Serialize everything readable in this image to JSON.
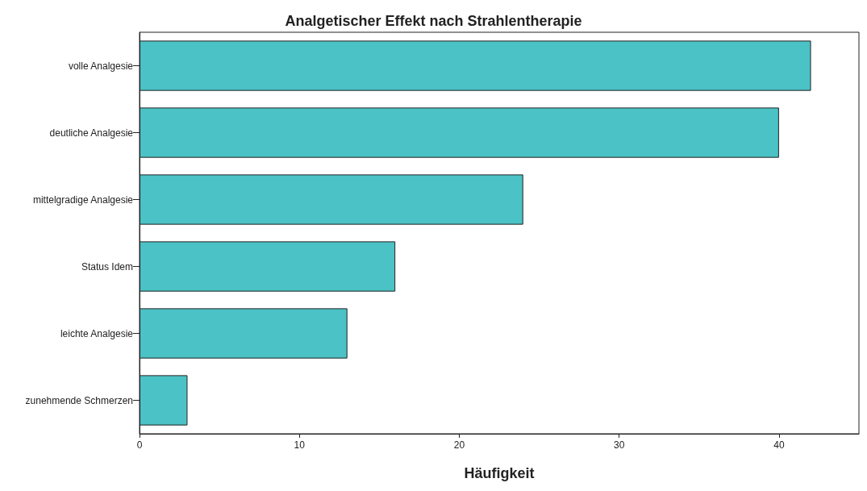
{
  "chart_data": {
    "type": "bar",
    "orientation": "horizontal",
    "title": "Analgetischer Effekt nach Strahlentherapie",
    "xlabel": "Häufigkeit",
    "categories": [
      "volle Analgesie",
      "deutliche Analgesie",
      "mittelgradige Analgesie",
      "Status Idem",
      "leichte Analgesie",
      "zunehmende Schmerzen"
    ],
    "values": [
      42,
      40,
      24,
      16,
      13,
      3
    ],
    "color": "#4bc2c6",
    "xlim": [
      0,
      45
    ],
    "xticks": [
      0,
      10,
      20,
      30,
      40
    ],
    "grid": false
  }
}
